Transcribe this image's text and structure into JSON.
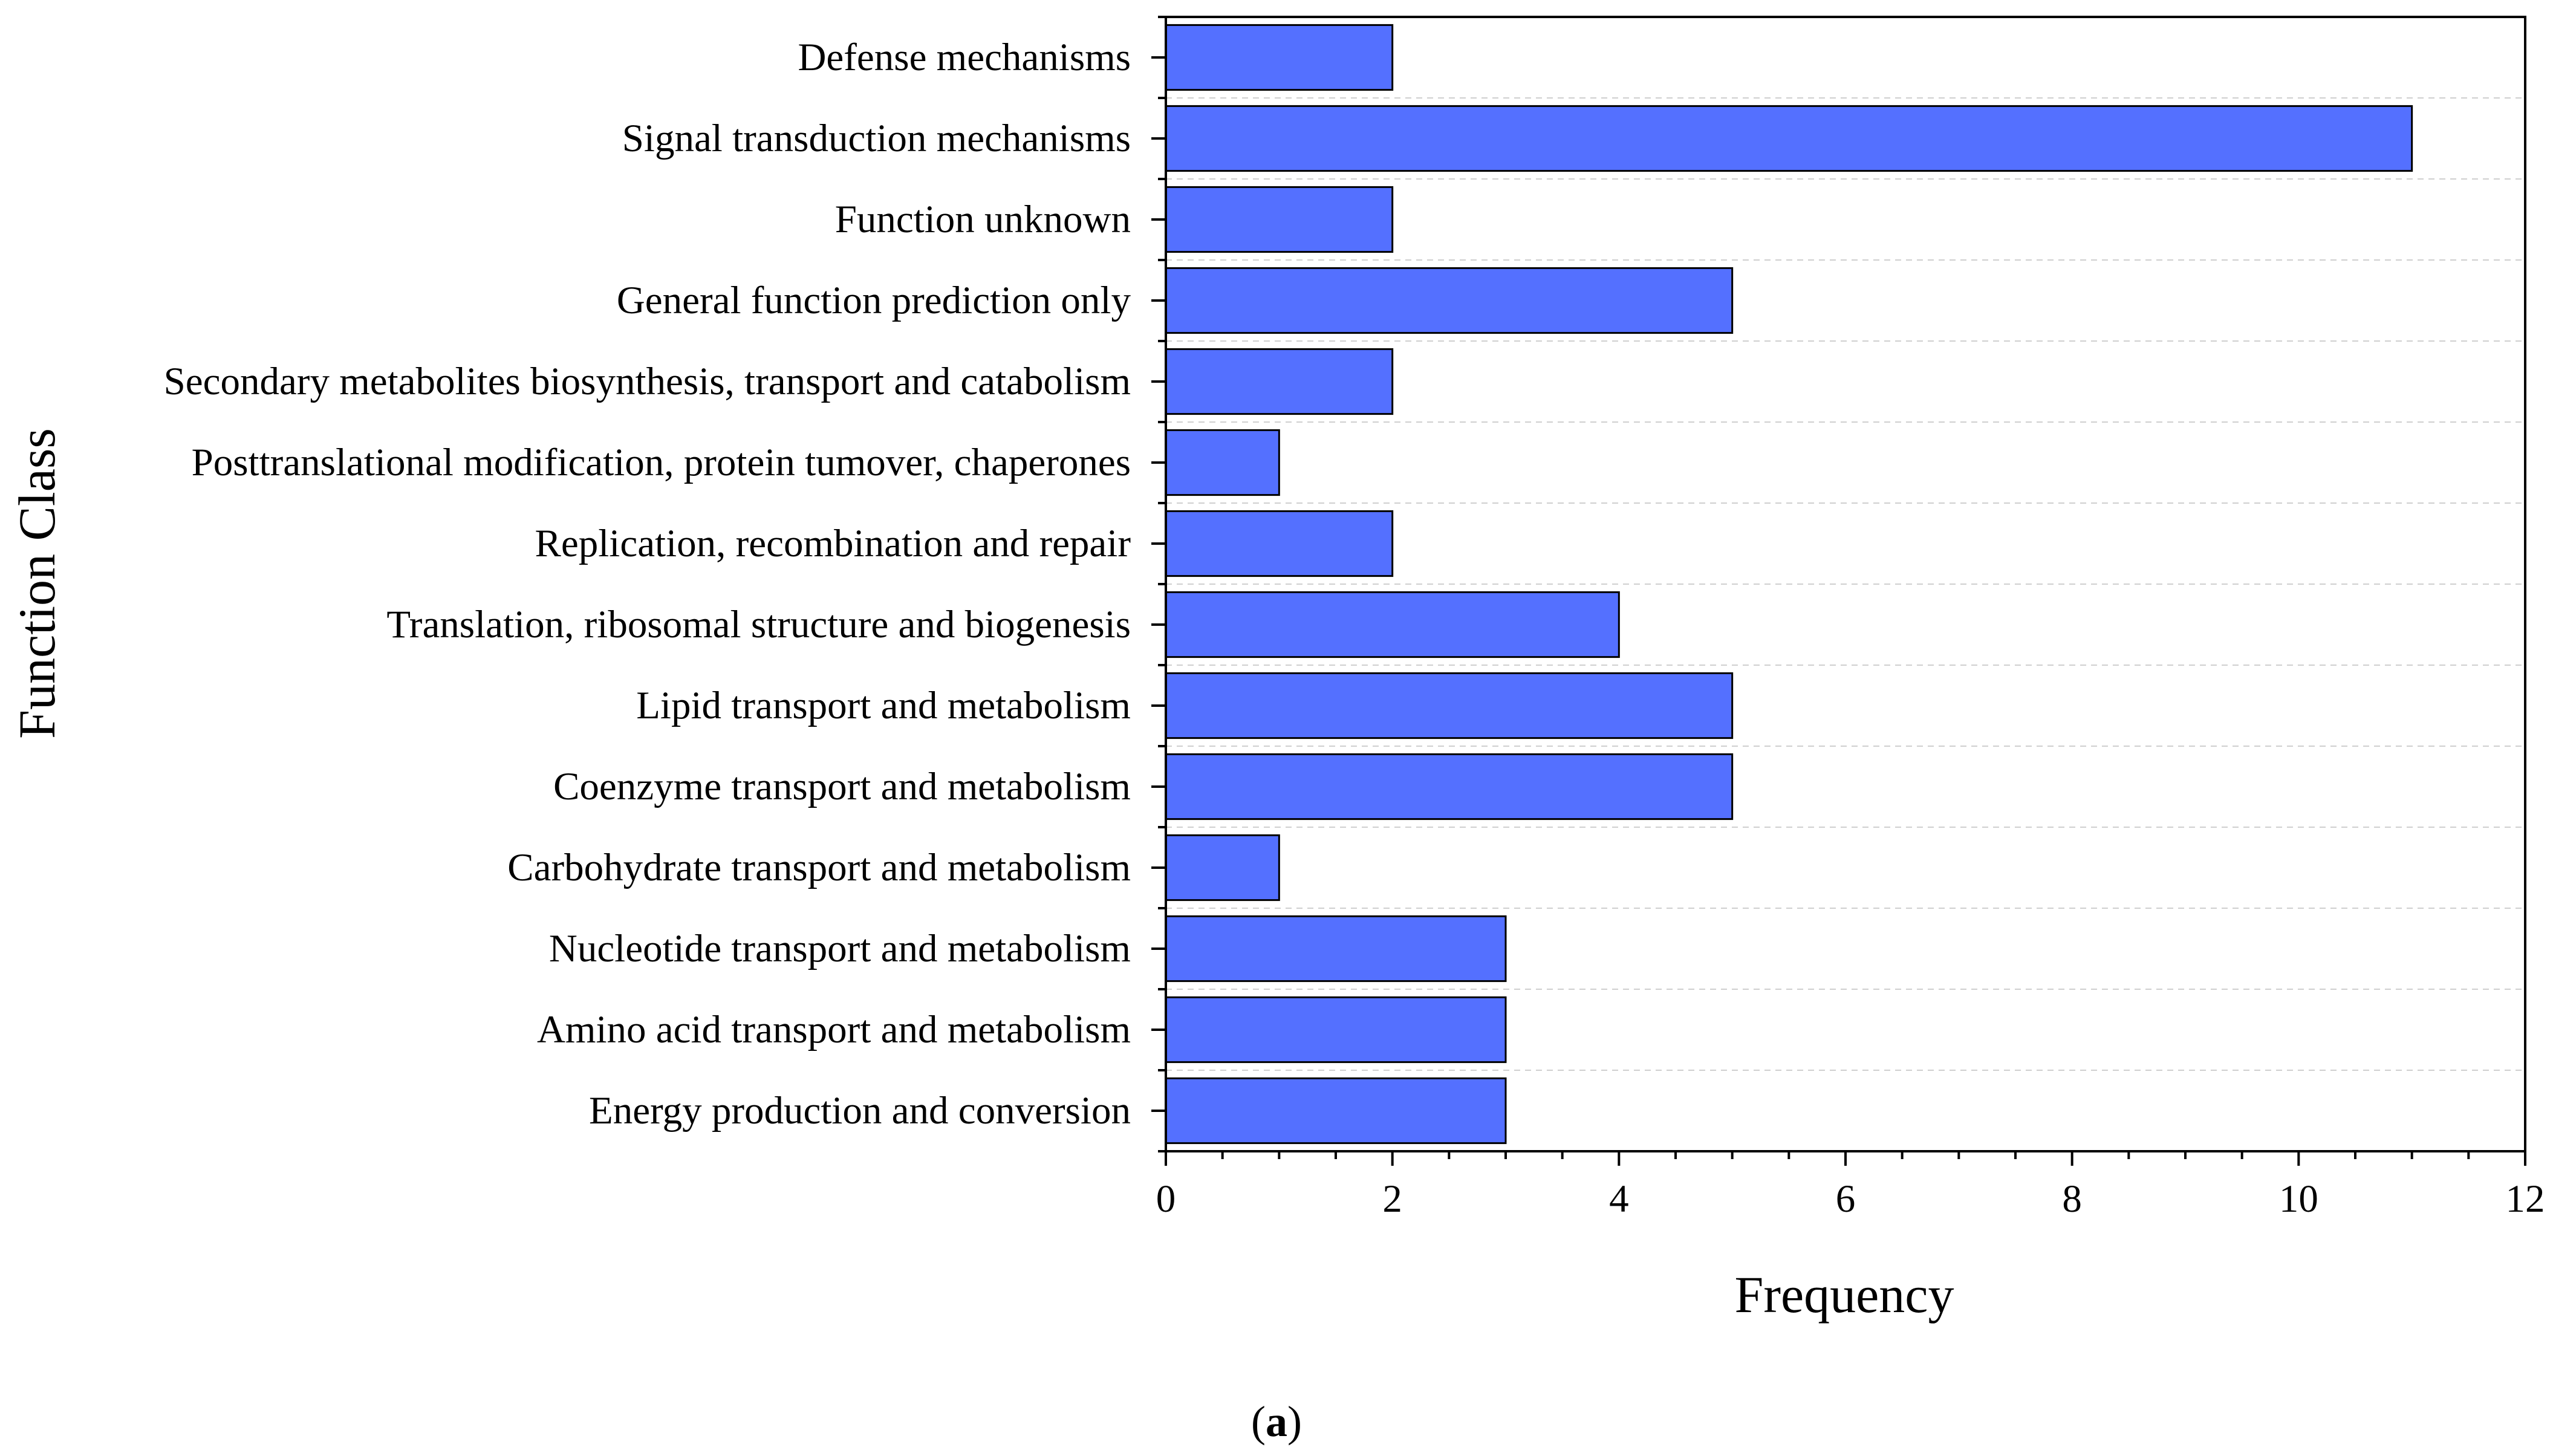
{
  "chart_data": {
    "type": "bar",
    "orientation": "horizontal",
    "categories": [
      "Defense mechanisms",
      "Signal transduction mechanisms",
      "Function unknown",
      "General function prediction only",
      "Secondary metabolites biosynthesis, transport and catabolism",
      "Posttranslational modification, protein tumover, chaperones",
      "Replication, recombination and repair",
      "Translation, ribosomal structure and biogenesis",
      "Lipid transport and metabolism",
      "Coenzyme transport and metabolism",
      "Carbohydrate transport and metabolism",
      "Nucleotide transport and metabolism",
      "Amino acid transport and metabolism",
      "Energy production and conversion"
    ],
    "values": [
      2,
      11,
      2,
      5,
      2,
      1,
      2,
      4,
      5,
      5,
      1,
      3,
      3,
      3
    ],
    "xlabel": "Frequency",
    "ylabel": "Function Class",
    "xlim": [
      0,
      12
    ],
    "xticks": [
      0,
      2,
      4,
      6,
      8,
      10,
      12
    ],
    "grid": "horizontal dashed",
    "bar_color": "#5470ff",
    "bar_edge_color": "#000000",
    "caption_paren_open": "(",
    "caption_letter": "a",
    "caption_paren_close": ")"
  }
}
